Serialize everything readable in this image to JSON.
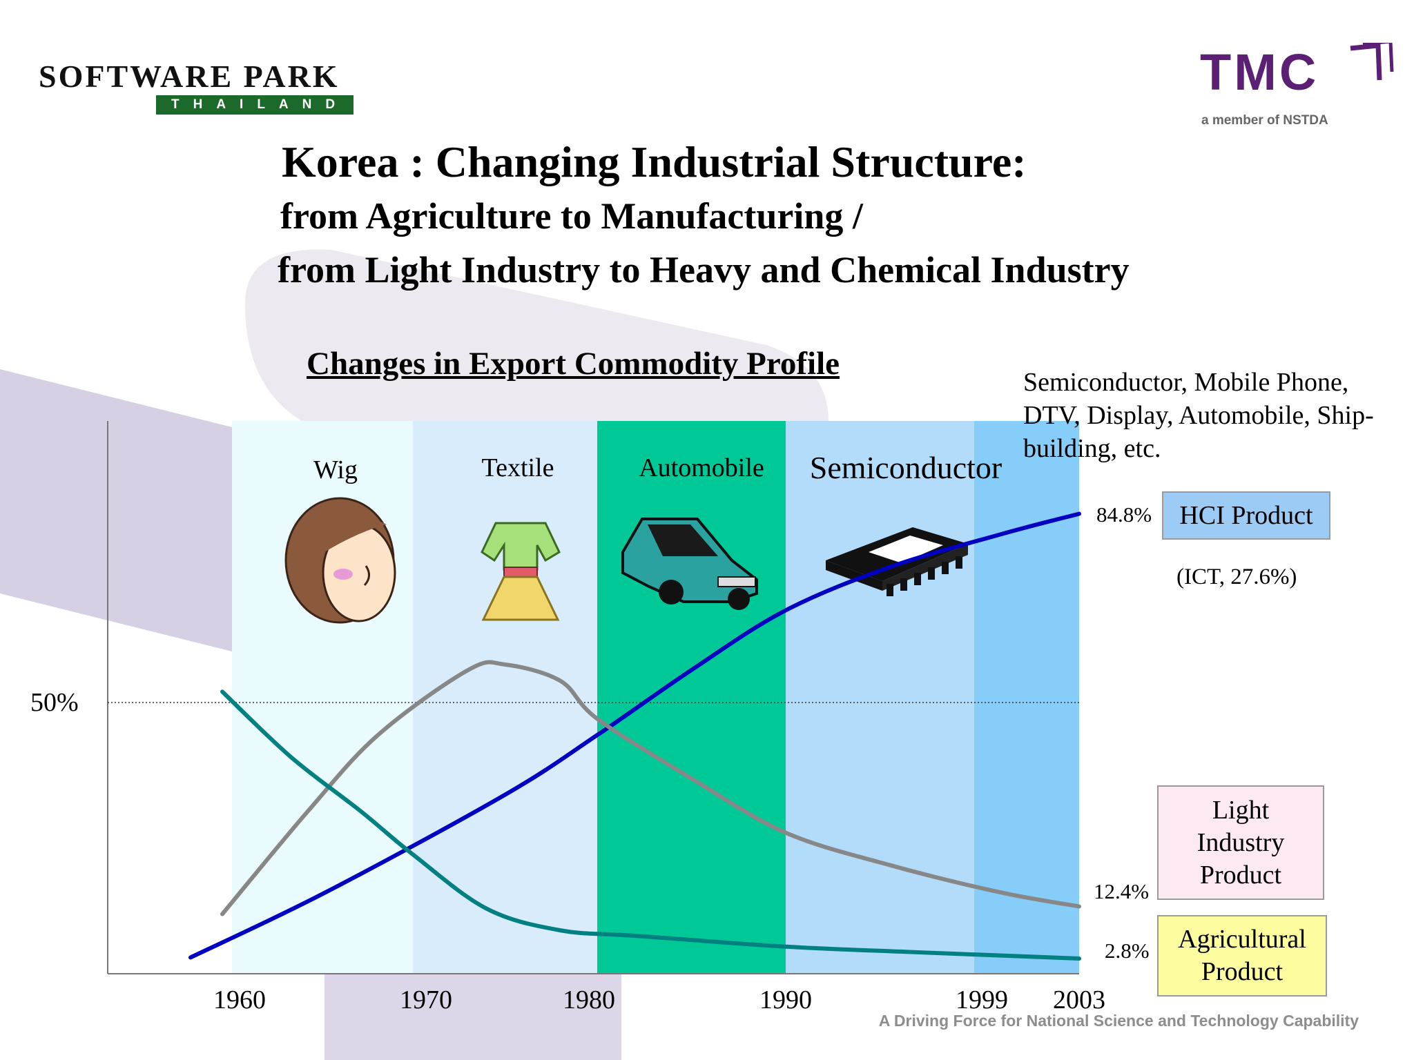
{
  "logos": {
    "left_name": "SOFTWARE PARK",
    "left_sub": "THAILAND",
    "right_name": "TMC",
    "right_sub": "a member of NSTDA"
  },
  "slide": {
    "title": "Korea : Changing Industrial Structure:",
    "subtitle_1": "from Agriculture to Manufacturing /",
    "subtitle_2": "from Light Industry to Heavy and Chemical Industry",
    "note_top": "Semiconductor, Mobile Phone, DTV, Display, Automobile, Ship-building, etc.",
    "ict_note": "(ICT, 27.6%)",
    "footer": "A Driving Force for National Science and Technology Capability"
  },
  "chart_data": {
    "type": "line",
    "title": "Changes in Export Commodity Profile",
    "x_ticks": [
      "1960",
      "1970",
      "1980",
      "1990",
      "1999",
      "2003"
    ],
    "y_ticks": [
      "50%"
    ],
    "eras": [
      {
        "label": "Wig",
        "picture": "wig-woman-icon",
        "color": "#e9fbfd"
      },
      {
        "label": "Textile",
        "picture": "dress-icon",
        "color": "#d8ecfc"
      },
      {
        "label": "Automobile",
        "picture": "car-icon",
        "color": "#00c896"
      },
      {
        "label": "Semiconductor",
        "picture": "chip-icon",
        "color": "#b3dcfa"
      },
      {
        "label": "",
        "picture": "",
        "color": "#87cdf9"
      }
    ],
    "series": [
      {
        "name": "HCI Product",
        "color": "#0000c0",
        "end_label": "84.8%",
        "legend_color": "#9ccbf5",
        "points": [
          [
            1957,
            3
          ],
          [
            1965,
            15
          ],
          [
            1975,
            33
          ],
          [
            1980,
            44
          ],
          [
            1985,
            56
          ],
          [
            1990,
            67
          ],
          [
            1995,
            75
          ],
          [
            2000,
            81
          ],
          [
            2003,
            84.8
          ]
        ]
      },
      {
        "name": "Light Industry Product",
        "color": "#878787",
        "end_label": "12.4%",
        "legend_color": "#fde9f2",
        "points": [
          [
            1959,
            11
          ],
          [
            1964,
            30
          ],
          [
            1968,
            44
          ],
          [
            1973,
            56
          ],
          [
            1975,
            57
          ],
          [
            1978,
            54
          ],
          [
            1980,
            47
          ],
          [
            1985,
            36
          ],
          [
            1990,
            26
          ],
          [
            1995,
            20
          ],
          [
            2000,
            15
          ],
          [
            2003,
            12.4
          ]
        ]
      },
      {
        "name": "Agricultural Product",
        "color": "#008080",
        "end_label": "2.8%",
        "legend_color": "#fdfda0",
        "points": [
          [
            1959,
            52
          ],
          [
            1963,
            40
          ],
          [
            1967,
            30
          ],
          [
            1970,
            22
          ],
          [
            1974,
            12
          ],
          [
            1978,
            8
          ],
          [
            1982,
            7
          ],
          [
            1990,
            5
          ],
          [
            1996,
            4
          ],
          [
            2003,
            2.8
          ]
        ]
      }
    ]
  }
}
